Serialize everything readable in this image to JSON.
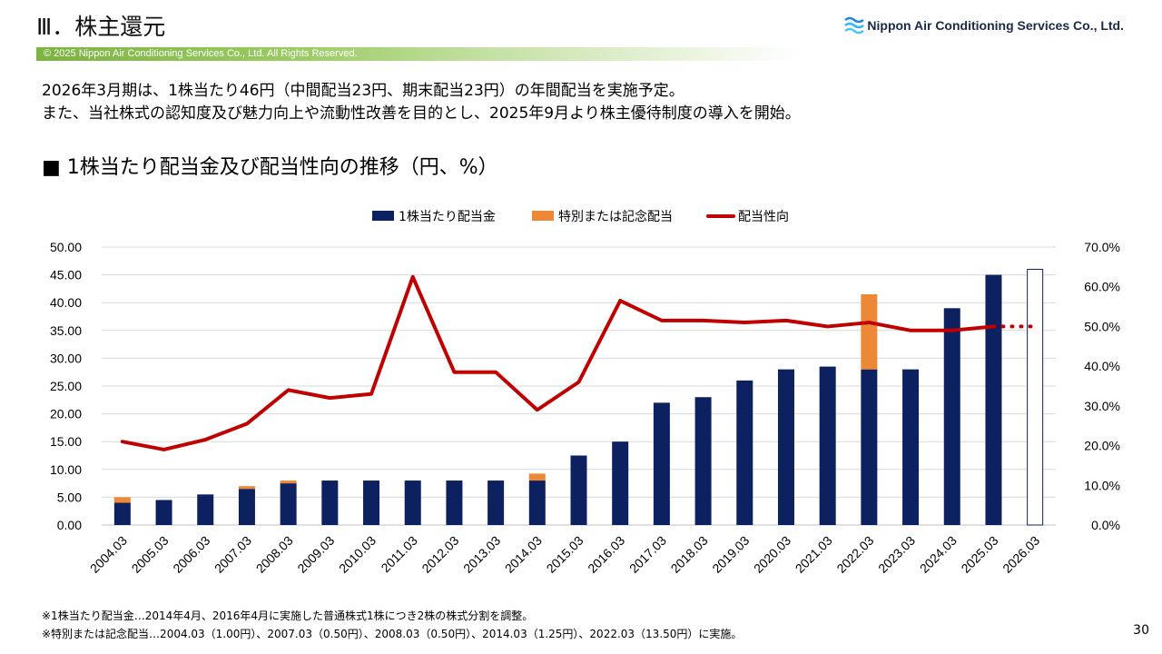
{
  "header": {
    "title": "Ⅲ．株主還元",
    "logo_text": "Nippon Air Conditioning Services Co., Ltd.",
    "copyright": "© 2025 Nippon Air Conditioning Services Co., Ltd. All Rights Reserved."
  },
  "intro": {
    "line1": "2026年3月期は、1株当たり46円（中間配当23円、期末配当23円）の年間配当を実施予定。",
    "line2": "また、当社株式の認知度及び魅力向上や流動性改善を目的とし、2025年9月より株主優待制度の導入を開始。"
  },
  "section_title": "■ 1株当たり配当金及び配当性向の推移（円、%）",
  "chart_data": {
    "type": "bar",
    "categories": [
      "2004.03",
      "2005.03",
      "2006.03",
      "2007.03",
      "2008.03",
      "2009.03",
      "2010.03",
      "2011.03",
      "2012.03",
      "2013.03",
      "2014.03",
      "2015.03",
      "2016.03",
      "2017.03",
      "2018.03",
      "2019.03",
      "2020.03",
      "2021.03",
      "2022.03",
      "2023.03",
      "2024.03",
      "2025.03",
      "2026.03"
    ],
    "series": [
      {
        "name": "1株当たり配当金",
        "kind": "bar",
        "color": "#0d2060",
        "values": [
          4.0,
          4.5,
          5.5,
          6.5,
          7.5,
          8.0,
          8.0,
          8.0,
          8.0,
          8.0,
          8.0,
          12.5,
          15.0,
          22.0,
          23.0,
          26.0,
          28.0,
          28.5,
          28.0,
          28.0,
          39.0,
          45.0,
          null
        ]
      },
      {
        "name": "特別または記念配当",
        "kind": "bar-stacked",
        "color": "#ed8936",
        "values": [
          1.0,
          0,
          0,
          0.5,
          0.5,
          0,
          0,
          0,
          0,
          0,
          1.25,
          0,
          0,
          0,
          0,
          0,
          0,
          0,
          13.5,
          0,
          0,
          0,
          null
        ]
      },
      {
        "name": "配当性向",
        "kind": "line",
        "axis": "right",
        "color": "#c00000",
        "values": [
          21.0,
          19.0,
          21.5,
          25.5,
          34.0,
          32.0,
          33.0,
          62.5,
          38.5,
          38.5,
          29.0,
          36.0,
          56.5,
          51.5,
          51.5,
          51.0,
          51.5,
          50.0,
          51.0,
          49.0,
          49.0,
          50.0,
          50.0
        ]
      }
    ],
    "forecast": {
      "category": "2026.03",
      "dividend": 46.0,
      "style": "outline"
    },
    "y_left": {
      "min": 0,
      "max": 50,
      "step": 5,
      "ticks": [
        "0.00",
        "5.00",
        "10.00",
        "15.00",
        "20.00",
        "25.00",
        "30.00",
        "35.00",
        "40.00",
        "45.00",
        "50.00"
      ]
    },
    "y_right": {
      "min": 0,
      "max": 70,
      "step": 10,
      "ticks": [
        "0.0%",
        "10.0%",
        "20.0%",
        "30.0%",
        "40.0%",
        "50.0%",
        "60.0%",
        "70.0%"
      ]
    },
    "grid": true,
    "legend_position": "top-center"
  },
  "footnotes": {
    "line1": "※1株当たり配当金…2014年4月、2016年4月に実施した普通株式1株につき2株の株式分割を調整。",
    "line2": "※特別または記念配当…2004.03（1.00円）、2007.03（0.50円）、2008.03（0.50円）、2014.03（1.25円）、2022.03（13.50円）に実施。"
  },
  "page_number": "30"
}
